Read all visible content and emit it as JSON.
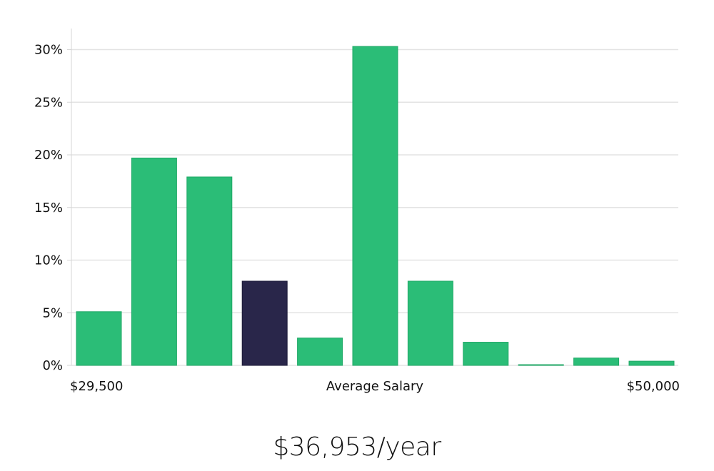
{
  "chart_data": {
    "type": "bar",
    "title": "",
    "ylabel": "",
    "xlabel": "Average Salary",
    "x_range_labels": {
      "start": "$29,500",
      "middle": "Average Salary",
      "end": "$50,000"
    },
    "ylim": [
      0,
      32
    ],
    "yticks": [
      0,
      5,
      10,
      15,
      20,
      25,
      30
    ],
    "ytick_labels": [
      "0%",
      "5%",
      "10%",
      "15%",
      "20%",
      "25%",
      "30%"
    ],
    "values": [
      5.1,
      19.7,
      17.9,
      8.0,
      2.6,
      30.3,
      8.0,
      2.2,
      0.05,
      0.7,
      0.4
    ],
    "highlight_index": 3,
    "colors": {
      "bar": "#2bbd77",
      "bar_stroke": "#1fa866",
      "highlight": "#29264a",
      "grid": "#e3e3e3",
      "axis": "#d6d6d6"
    }
  },
  "salary_summary": "$36,953/year"
}
